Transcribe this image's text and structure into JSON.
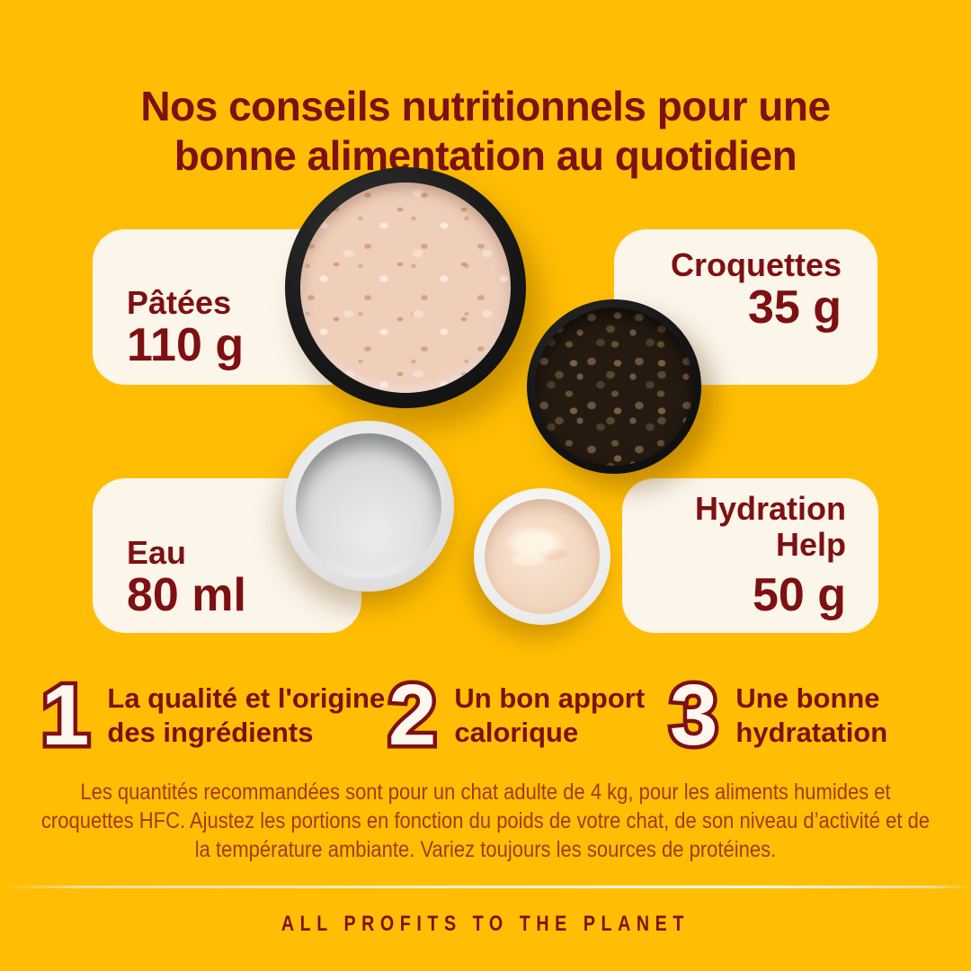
{
  "title": {
    "line1": "Nos conseils nutritionnels pour une",
    "line2": "bonne alimentation au quotidien"
  },
  "cards": [
    {
      "label": "Pâtées",
      "amount": "110 g"
    },
    {
      "label": "Croquettes",
      "amount": "35 g"
    },
    {
      "label": "Eau",
      "amount": "80 ml"
    },
    {
      "label": "Hydration Help",
      "amount": "50 g"
    }
  ],
  "bowls": [
    "pate-bowl-photo",
    "kibble-bowl-photo",
    "water-bowl-photo",
    "hydration-bowl-photo"
  ],
  "tips": [
    {
      "number": "1",
      "text": "La qualité et l'origine des ingrédients"
    },
    {
      "number": "2",
      "text": "Un bon apport calorique"
    },
    {
      "number": "3",
      "text": "Une bonne hydratation"
    }
  ],
  "disclaimer": "Les quantités recommandées sont pour un chat adulte de 4 kg, pour les aliments humides et croquettes HFC. Ajustez les portions en fonction du poids de votre chat, de son niveau d’activité et de la température ambiante. Variez toujours les sources de protéines.",
  "footer": {
    "tagline": "ALL PROFITS TO THE PLANET"
  },
  "colors": {
    "background": "#FFBE03",
    "card": "#FBF5EA",
    "heading": "#7E1012",
    "disclaimer_red": "#A23A1B",
    "number_fill": "#FDF7EE"
  }
}
